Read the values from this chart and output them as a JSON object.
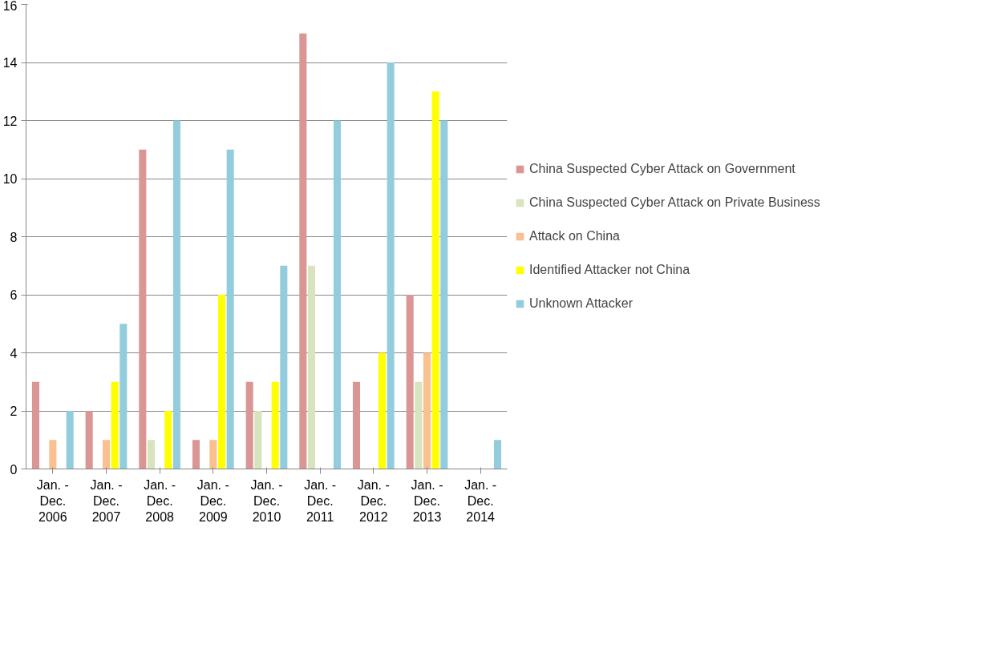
{
  "chart_data": {
    "type": "bar",
    "categories": [
      "Jan. -\nDec.\n2006",
      "Jan. -\nDec.\n2007",
      "Jan. -\nDec.\n2008",
      "Jan. -\nDec.\n2009",
      "Jan. -\nDec.\n2010",
      "Jan. -\nDec.\n2011",
      "Jan. -\nDec.\n2012",
      "Jan. -\nDec.\n2013",
      "Jan. -\nDec.\n2014"
    ],
    "series": [
      {
        "name": "China Suspected Cyber Attack on Government",
        "color": "#d99694",
        "values": [
          3,
          2,
          11,
          1,
          3,
          15,
          3,
          6,
          null
        ]
      },
      {
        "name": "China Suspected Cyber Attack on Private Business",
        "color": "#d7e4bd",
        "values": [
          null,
          null,
          1,
          null,
          2,
          7,
          null,
          3,
          null
        ]
      },
      {
        "name": "Attack on China",
        "color": "#fac08f",
        "values": [
          1,
          1,
          null,
          1,
          null,
          null,
          null,
          4,
          null
        ]
      },
      {
        "name": "Identified Attacker not China",
        "color": "#ffff00",
        "values": [
          null,
          3,
          2,
          6,
          3,
          null,
          4,
          13,
          null
        ]
      },
      {
        "name": "Unknown Attacker",
        "color": "#93cddd",
        "values": [
          2,
          5,
          12,
          11,
          7,
          12,
          14,
          12,
          1
        ]
      }
    ],
    "ylim": [
      0,
      16
    ],
    "yticks": [
      0,
      2,
      4,
      6,
      8,
      10,
      12,
      14,
      16
    ],
    "grid": "y",
    "legend": "right"
  }
}
